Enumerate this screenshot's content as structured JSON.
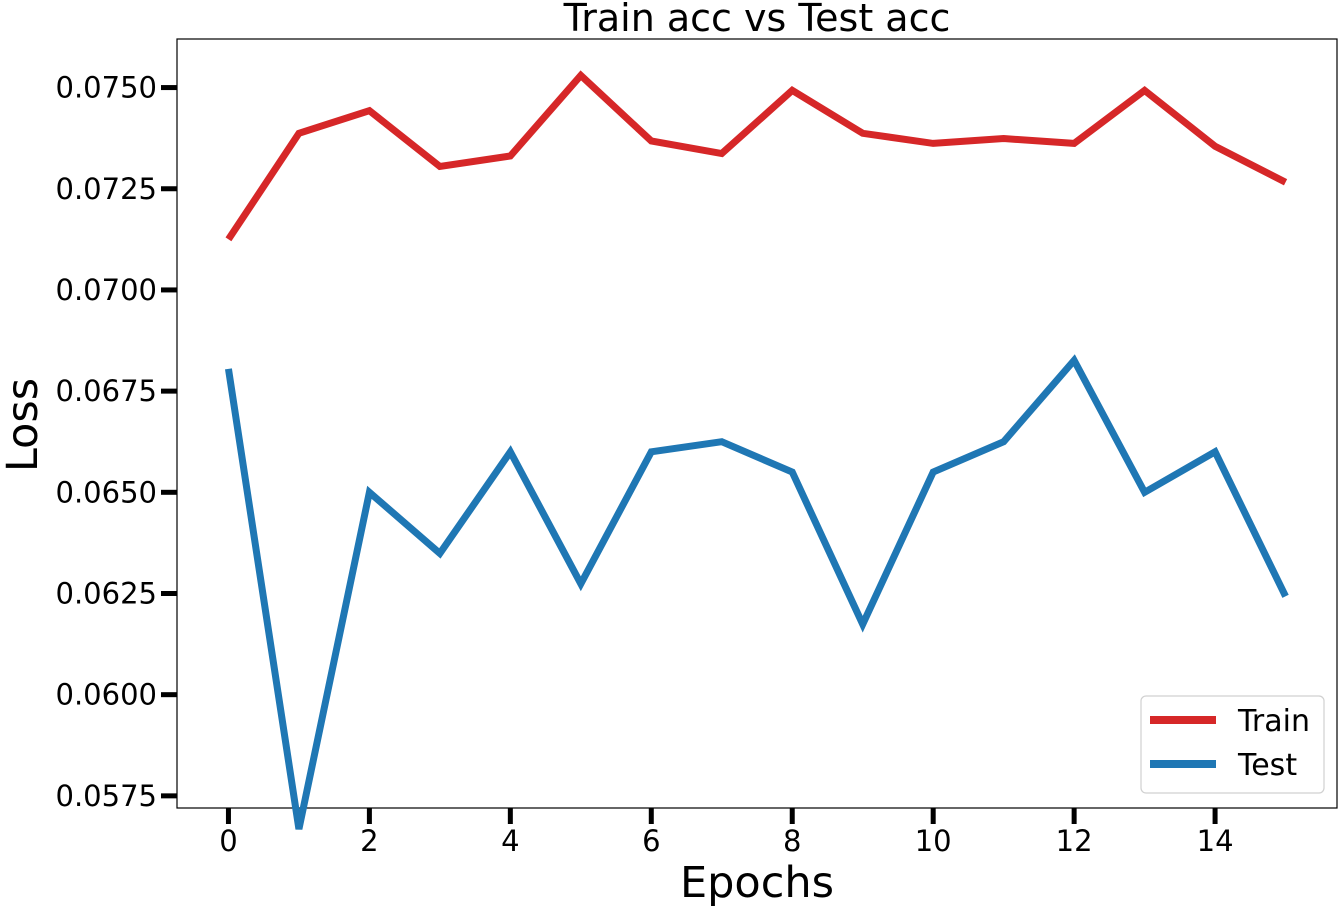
{
  "chart_data": {
    "type": "line",
    "title": "Train acc vs Test acc",
    "xlabel": "Epochs",
    "ylabel": "Loss",
    "x": [
      0,
      1,
      2,
      3,
      4,
      5,
      6,
      7,
      8,
      9,
      10,
      11,
      12,
      13,
      14,
      15
    ],
    "series": [
      {
        "name": "Train",
        "color": "#d62728",
        "values": [
          0.07125,
          0.07387,
          0.07443,
          0.07305,
          0.07331,
          0.0753,
          0.07368,
          0.07337,
          0.07493,
          0.07387,
          0.07362,
          0.07374,
          0.07362,
          0.07493,
          0.07355,
          0.07266
        ]
      },
      {
        "name": "Test",
        "color": "#1f77b4",
        "values": [
          0.06805,
          0.05668,
          0.065,
          0.06349,
          0.066,
          0.06274,
          0.066,
          0.06625,
          0.0655,
          0.06174,
          0.0655,
          0.06625,
          0.06826,
          0.065,
          0.066,
          0.06243
        ]
      }
    ],
    "xticks": [
      "0",
      "2",
      "4",
      "6",
      "8",
      "10",
      "12",
      "14"
    ],
    "yticks": [
      "0.0575",
      "0.0600",
      "0.0625",
      "0.0650",
      "0.0675",
      "0.0700",
      "0.0725",
      "0.0750"
    ],
    "xlim": [
      -0.73,
      15.73
    ],
    "ylim": [
      0.0572,
      0.0762
    ],
    "grid": false,
    "legend_position": "bottom-right"
  }
}
